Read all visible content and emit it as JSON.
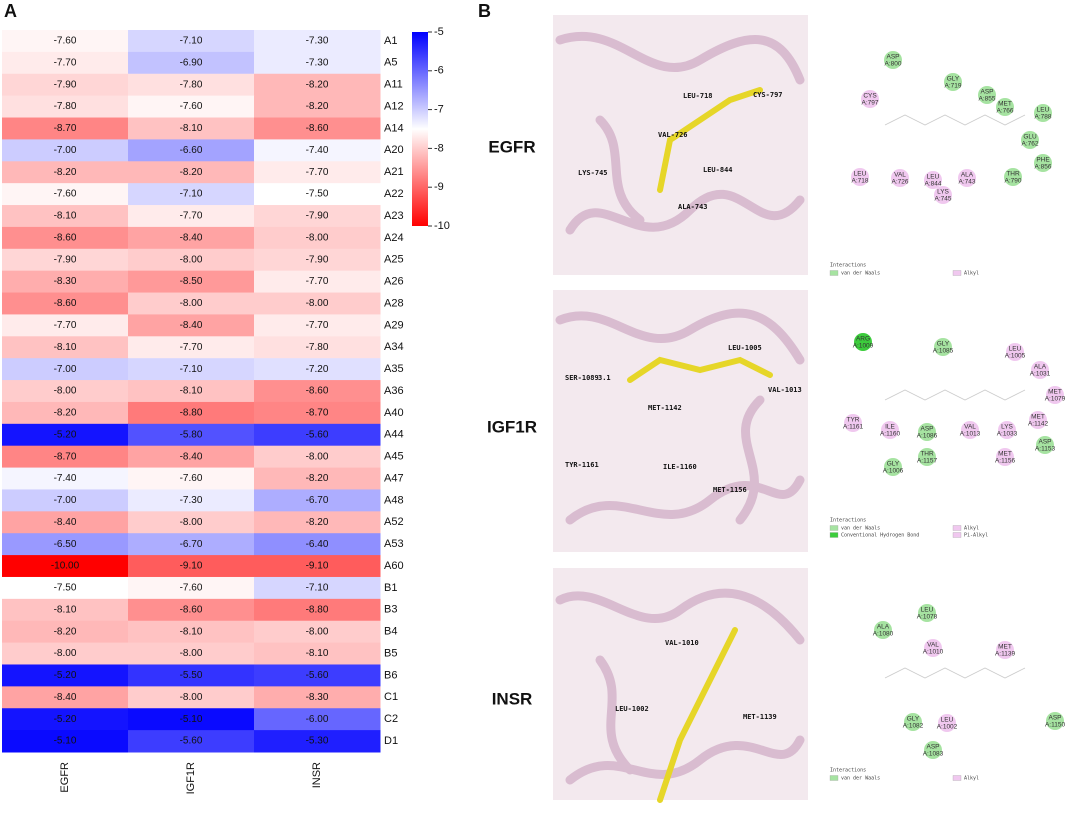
{
  "panel_labels": [
    "A",
    "B"
  ],
  "chart_data": {
    "type": "heatmap",
    "categories": [
      "A1",
      "A5",
      "A11",
      "A12",
      "A14",
      "A20",
      "A21",
      "A22",
      "A23",
      "A24",
      "A25",
      "A26",
      "A28",
      "A29",
      "A34",
      "A35",
      "A36",
      "A40",
      "A44",
      "A45",
      "A47",
      "A48",
      "A52",
      "A53",
      "A60",
      "B1",
      "B3",
      "B4",
      "B5",
      "B6",
      "C1",
      "C2",
      "D1"
    ],
    "columns": [
      "EGFR",
      "IGF1R",
      "INSR"
    ],
    "values": [
      [
        -7.6,
        -7.1,
        -7.3
      ],
      [
        -7.7,
        -6.9,
        -7.3
      ],
      [
        -7.9,
        -7.8,
        -8.2
      ],
      [
        -7.8,
        -7.6,
        -8.2
      ],
      [
        -8.7,
        -8.1,
        -8.6
      ],
      [
        -7.0,
        -6.6,
        -7.4
      ],
      [
        -8.2,
        -8.2,
        -7.7
      ],
      [
        -7.6,
        -7.1,
        -7.5
      ],
      [
        -8.1,
        -7.7,
        -7.9
      ],
      [
        -8.6,
        -8.4,
        -8.0
      ],
      [
        -7.9,
        -8.0,
        -7.9
      ],
      [
        -8.3,
        -8.5,
        -7.7
      ],
      [
        -8.6,
        -8.0,
        -8.0
      ],
      [
        -7.7,
        -8.4,
        -7.7
      ],
      [
        -8.1,
        -7.7,
        -7.8
      ],
      [
        -7.0,
        -7.1,
        -7.2
      ],
      [
        -8.0,
        -8.1,
        -8.6
      ],
      [
        -8.2,
        -8.8,
        -8.7
      ],
      [
        -5.2,
        -5.8,
        -5.6
      ],
      [
        -8.7,
        -8.4,
        -8.0
      ],
      [
        -7.4,
        -7.6,
        -8.2
      ],
      [
        -7.0,
        -7.3,
        -6.7
      ],
      [
        -8.4,
        -8.0,
        -8.2
      ],
      [
        -6.5,
        -6.7,
        -6.4
      ],
      [
        -10.0,
        -9.1,
        -9.1
      ],
      [
        -7.5,
        -7.6,
        -7.1
      ],
      [
        -8.1,
        -8.6,
        -8.8
      ],
      [
        -8.2,
        -8.1,
        -8.0
      ],
      [
        -8.0,
        -8.0,
        -8.1
      ],
      [
        -5.2,
        -5.5,
        -5.6
      ],
      [
        -8.4,
        -8.0,
        -8.3
      ],
      [
        -5.2,
        -5.1,
        -6.0
      ],
      [
        -5.1,
        -5.6,
        -5.3
      ]
    ],
    "value_labels": [
      [
        "-7.60",
        "-7.10",
        "-7.30"
      ],
      [
        "-7.70",
        "-6.90",
        "-7.30"
      ],
      [
        "-7.90",
        "-7.80",
        "-8.20"
      ],
      [
        "-7.80",
        "-7.60",
        "-8.20"
      ],
      [
        "-8.70",
        "-8.10",
        "-8.60"
      ],
      [
        "-7.00",
        "-6.60",
        "-7.40"
      ],
      [
        "-8.20",
        "-8.20",
        "-7.70"
      ],
      [
        "-7.60",
        "-7.10",
        "-7.50"
      ],
      [
        "-8.10",
        "-7.70",
        "-7.90"
      ],
      [
        "-8.60",
        "-8.40",
        "-8.00"
      ],
      [
        "-7.90",
        "-8.00",
        "-7.90"
      ],
      [
        "-8.30",
        "-8.50",
        "-7.70"
      ],
      [
        "-8.60",
        "-8.00",
        "-8.00"
      ],
      [
        "-7.70",
        "-8.40",
        "-7.70"
      ],
      [
        "-8.10",
        "-7.70",
        "-7.80"
      ],
      [
        "-7.00",
        "-7.10",
        "-7.20"
      ],
      [
        "-8.00",
        "-8.10",
        "-8.60"
      ],
      [
        "-8.20",
        "-8.80",
        "-8.70"
      ],
      [
        "-5.20",
        "-5.80",
        "-5.60"
      ],
      [
        "-8.70",
        "-8.40",
        "-8.00"
      ],
      [
        "-7.40",
        "-7.60",
        "-8.20"
      ],
      [
        "-7.00",
        "-7.30",
        "-6.70"
      ],
      [
        "-8.40",
        "-8.00",
        "-8.20"
      ],
      [
        "-6.50",
        "-6.70",
        "-6.40"
      ],
      [
        "-10.00",
        "-9.10",
        "-9.10"
      ],
      [
        "-7.50",
        "-7.60",
        "-7.10"
      ],
      [
        "-8.10",
        "-8.60",
        "-8.80"
      ],
      [
        "-8.20",
        "-8.10",
        "-8.00"
      ],
      [
        "-8.00",
        "-8.00",
        "-8.10"
      ],
      [
        "-5.20",
        "-5.50",
        "-5.60"
      ],
      [
        "-8.40",
        "-8.00",
        "-8.30"
      ],
      [
        "-5.20",
        "-5.10",
        "-6.00"
      ],
      [
        "-5.10",
        "-5.60",
        "-5.30"
      ]
    ],
    "colorbar_lim": [
      -10,
      -5
    ],
    "colorbar_ticks": [
      -5,
      -6,
      -7,
      -8,
      -9,
      -10
    ],
    "colors": {
      "low": "#ff0000",
      "mid": "#ffffff",
      "high": "#0000ff"
    }
  },
  "docking": [
    {
      "target": "EGFR",
      "residues": [
        "LEU-718",
        "CYS-797",
        "VAL-726",
        "LYS-745",
        "LEU-844",
        "ALA-743"
      ],
      "diagram": [
        {
          "name": "ASP",
          "id": "A:800",
          "color": "#a6e3a1"
        },
        {
          "name": "GLY",
          "id": "A:719",
          "color": "#a6e3a1"
        },
        {
          "name": "ASP",
          "id": "A:855",
          "color": "#a6e3a1"
        },
        {
          "name": "MET",
          "id": "A:766",
          "color": "#a6e3a1"
        },
        {
          "name": "LEU",
          "id": "A:788",
          "color": "#a6e3a1"
        },
        {
          "name": "CYS",
          "id": "A:797",
          "color": "#f0c8ef"
        },
        {
          "name": "GLU",
          "id": "A:762",
          "color": "#a6e3a1"
        },
        {
          "name": "PHE",
          "id": "A:856",
          "color": "#a6e3a1"
        },
        {
          "name": "LEU",
          "id": "A:718",
          "color": "#f0c8ef"
        },
        {
          "name": "VAL",
          "id": "A:726",
          "color": "#f0c8ef"
        },
        {
          "name": "LEU",
          "id": "A:844",
          "color": "#f0c8ef"
        },
        {
          "name": "ALA",
          "id": "A:743",
          "color": "#f0c8ef"
        },
        {
          "name": "THR",
          "id": "A:790",
          "color": "#a6e3a1"
        },
        {
          "name": "LYS",
          "id": "A:745",
          "color": "#f0c8ef"
        }
      ],
      "legend_title": "Interactions",
      "legend": [
        {
          "label": "van der Waals",
          "color": "#a6e3a1"
        },
        {
          "label": "Alkyl",
          "color": "#f0c8ef"
        }
      ]
    },
    {
      "target": "IGF1R",
      "residues": [
        "LEU-1005",
        "SER-1089",
        "3.1",
        "VAL-1013",
        "MET-1142",
        "TYR-1161",
        "ILE-1160",
        "MET-1156"
      ],
      "diagram": [
        {
          "name": "ARG",
          "id": "A:1009",
          "color": "#3ccc3c"
        },
        {
          "name": "GLY",
          "id": "A:1085",
          "color": "#a6e3a1"
        },
        {
          "name": "LEU",
          "id": "A:1005",
          "color": "#f0c8ef"
        },
        {
          "name": "ALA",
          "id": "A:1031",
          "color": "#f0c8ef"
        },
        {
          "name": "MET",
          "id": "A:1079",
          "color": "#f0c8ef"
        },
        {
          "name": "MET",
          "id": "A:1142",
          "color": "#f0c8ef"
        },
        {
          "name": "LYS",
          "id": "A:1033",
          "color": "#f0c8ef"
        },
        {
          "name": "ASP",
          "id": "A:1153",
          "color": "#a6e3a1"
        },
        {
          "name": "TYR",
          "id": "A:1161",
          "color": "#f0c8ef"
        },
        {
          "name": "ILE",
          "id": "A:1160",
          "color": "#f0c8ef"
        },
        {
          "name": "ASP",
          "id": "A:1086",
          "color": "#a6e3a1"
        },
        {
          "name": "VAL",
          "id": "A:1013",
          "color": "#f0c8ef"
        },
        {
          "name": "THR",
          "id": "A:1157",
          "color": "#a6e3a1"
        },
        {
          "name": "GLY",
          "id": "A:1006",
          "color": "#a6e3a1"
        },
        {
          "name": "MET",
          "id": "A:1156",
          "color": "#f0c8ef"
        }
      ],
      "legend_title": "Interactions",
      "legend": [
        {
          "label": "van der Waals",
          "color": "#a6e3a1"
        },
        {
          "label": "Conventional Hydrogen Bond",
          "color": "#3ccc3c"
        },
        {
          "label": "Alkyl",
          "color": "#f0c8ef"
        },
        {
          "label": "Pi-Alkyl",
          "color": "#f0c8ef"
        }
      ]
    },
    {
      "target": "INSR",
      "residues": [
        "VAL-1010",
        "LEU-1002",
        "MET-1139"
      ],
      "diagram": [
        {
          "name": "LEU",
          "id": "A:1078",
          "color": "#a6e3a1"
        },
        {
          "name": "ALA",
          "id": "A:1080",
          "color": "#a6e3a1"
        },
        {
          "name": "VAL",
          "id": "A:1010",
          "color": "#f0c8ef"
        },
        {
          "name": "MET",
          "id": "A:1139",
          "color": "#f0c8ef"
        },
        {
          "name": "ASP",
          "id": "A:1150",
          "color": "#a6e3a1"
        },
        {
          "name": "GLY",
          "id": "A:1082",
          "color": "#a6e3a1"
        },
        {
          "name": "LEU",
          "id": "A:1002",
          "color": "#f0c8ef"
        },
        {
          "name": "ASP",
          "id": "A:1083",
          "color": "#a6e3a1"
        }
      ],
      "legend_title": "Interactions",
      "legend": [
        {
          "label": "van der Waals",
          "color": "#a6e3a1"
        },
        {
          "label": "Alkyl",
          "color": "#f0c8ef"
        }
      ]
    }
  ]
}
